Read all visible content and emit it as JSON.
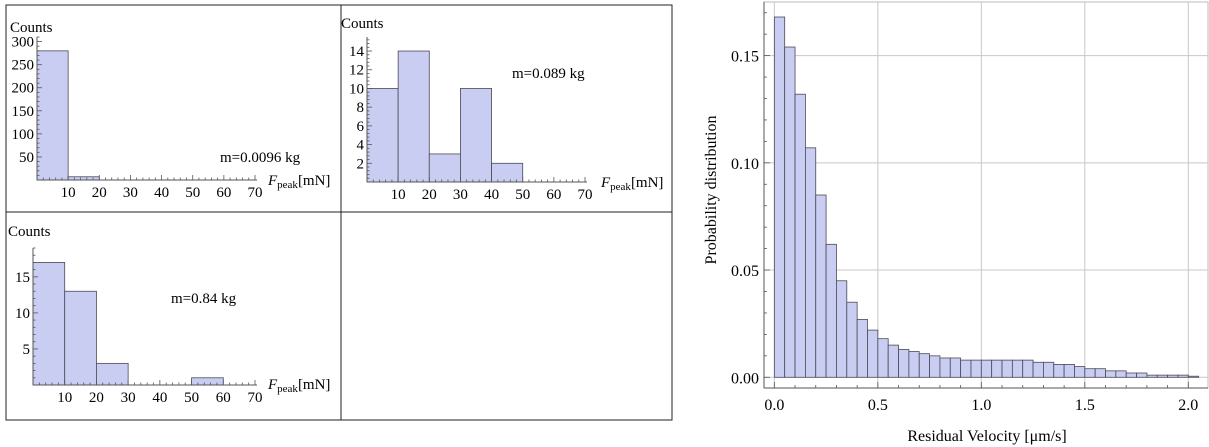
{
  "chart_data": [
    {
      "type": "bar",
      "panel": "top-left",
      "ylabel": "Counts",
      "xlabel_main": "F",
      "xlabel_sub": "peak",
      "xlabel_unit": "[mN]",
      "annotation": "m=0.0096 kg",
      "bin_edges": [
        0,
        10,
        20,
        30,
        40,
        50,
        60,
        70
      ],
      "values": [
        280,
        7,
        0,
        0,
        0,
        0,
        0
      ],
      "xlim": [
        0,
        70
      ],
      "ylim": [
        0,
        310
      ],
      "xticks": [
        "10",
        "20",
        "30",
        "40",
        "50",
        "60",
        "70"
      ],
      "yticks": [
        "50",
        "100",
        "150",
        "200",
        "250",
        "300"
      ]
    },
    {
      "type": "bar",
      "panel": "top-right",
      "ylabel": "Counts",
      "xlabel_main": "F",
      "xlabel_sub": "peak",
      "xlabel_unit": "[mN]",
      "annotation": "m=0.089 kg",
      "bin_edges": [
        0,
        10,
        20,
        30,
        40,
        50,
        60,
        70
      ],
      "values": [
        10,
        14,
        3,
        10,
        2,
        0,
        0
      ],
      "xlim": [
        0,
        70
      ],
      "ylim": [
        0,
        15.5
      ],
      "xticks": [
        "10",
        "20",
        "30",
        "40",
        "50",
        "60",
        "70"
      ],
      "yticks": [
        "2",
        "4",
        "6",
        "8",
        "10",
        "12",
        "14"
      ]
    },
    {
      "type": "bar",
      "panel": "bottom-left",
      "ylabel": "Counts",
      "xlabel_main": "F",
      "xlabel_sub": "peak",
      "xlabel_unit": "[mN]",
      "annotation": "m=0.84 kg",
      "bin_edges": [
        0,
        10,
        20,
        30,
        40,
        50,
        60,
        70
      ],
      "values": [
        17,
        13,
        3,
        0,
        0,
        1,
        0
      ],
      "xlim": [
        0,
        70
      ],
      "ylim": [
        0,
        19
      ],
      "xticks": [
        "10",
        "20",
        "30",
        "40",
        "50",
        "60",
        "70"
      ],
      "yticks": [
        "5",
        "10",
        "15"
      ]
    },
    {
      "type": "bar",
      "panel": "right",
      "xlabel": "Residual Velocity [μm/s]",
      "ylabel": "Probability distribution",
      "bin_width": 0.05,
      "x_start": 0.0,
      "values": [
        0.168,
        0.154,
        0.132,
        0.107,
        0.085,
        0.062,
        0.045,
        0.035,
        0.027,
        0.022,
        0.018,
        0.015,
        0.013,
        0.012,
        0.011,
        0.01,
        0.009,
        0.009,
        0.008,
        0.008,
        0.008,
        0.008,
        0.008,
        0.008,
        0.008,
        0.007,
        0.007,
        0.006,
        0.006,
        0.005,
        0.004,
        0.004,
        0.003,
        0.003,
        0.002,
        0.002,
        0.001,
        0.001,
        0.001,
        0.001,
        0.0005
      ],
      "xlim": [
        -0.05,
        2.1
      ],
      "ylim": [
        -0.005,
        0.175
      ],
      "xticks": [
        "0.0",
        "0.5",
        "1.0",
        "1.5",
        "2.0"
      ],
      "yticks": [
        "0.00",
        "0.05",
        "0.10",
        "0.15"
      ],
      "grid": true
    }
  ]
}
